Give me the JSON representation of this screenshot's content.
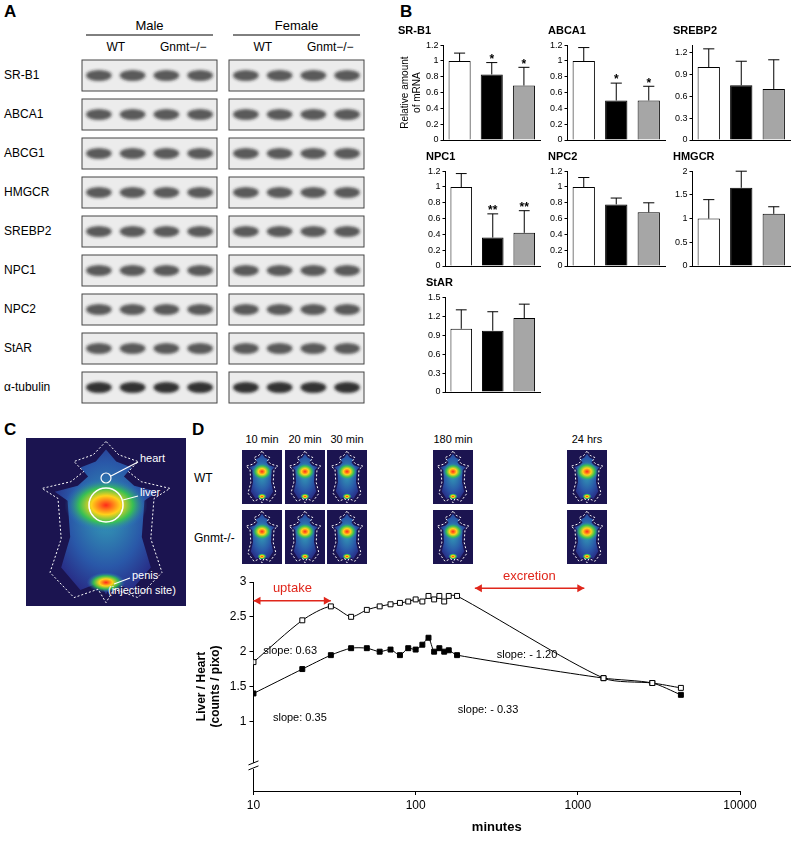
{
  "panel_labels": [
    "A",
    "B",
    "C",
    "D"
  ],
  "blots": {
    "groups": [
      {
        "label": "Male",
        "columns": [
          "WT",
          "Gnmt−/−"
        ]
      },
      {
        "label": "Female",
        "columns": [
          "WT",
          "Gnmt−/−"
        ]
      }
    ],
    "rows": [
      "SR-B1",
      "ABCA1",
      "ABCG1",
      "HMGCR",
      "SREBP2",
      "NPC1",
      "NPC2",
      "StAR",
      "α-tubulin"
    ]
  },
  "image_c": {
    "labels": [
      "heart",
      "liver",
      "penis",
      "(injection site)"
    ]
  },
  "image_d": {
    "times": [
      "10 min",
      "20 min",
      "30 min",
      "180 min",
      "24 hrs"
    ],
    "rows": [
      "WT",
      "Gnmt-/-"
    ]
  },
  "chart_data": [
    {
      "type": "bar",
      "title": "SR-B1",
      "y_label": [
        "Relative amount",
        "of mRNA"
      ],
      "categories": [
        null,
        null,
        null
      ],
      "values": [
        1,
        0.83,
        0.69
      ],
      "errors": [
        0.1,
        0.15,
        0.23
      ],
      "significance": [
        null,
        "*",
        "*"
      ],
      "colors": [
        "#ffffff",
        "#000000",
        "#a6a6a6"
      ],
      "ylim": [
        0,
        1.2
      ],
      "yticks": [
        0,
        0.2,
        0.4,
        0.6,
        0.8,
        1,
        1.2
      ],
      "grid": false,
      "tick_labels": "y"
    },
    {
      "type": "bar",
      "title": "ABCA1",
      "categories": [
        null,
        null,
        null
      ],
      "values": [
        1,
        0.5,
        0.5
      ],
      "errors": [
        0.17,
        0.22,
        0.18
      ],
      "significance": [
        null,
        "*",
        "*"
      ],
      "colors": [
        "#ffffff",
        "#000000",
        "#a6a6a6"
      ],
      "ylim": [
        0,
        1.2
      ],
      "yticks": [
        0,
        0.2,
        0.4,
        0.6,
        0.8,
        1,
        1.2
      ],
      "grid": false,
      "tick_labels": "y"
    },
    {
      "type": "bar",
      "title": "SREBP2",
      "categories": [
        null,
        null,
        null
      ],
      "values": [
        1,
        0.75,
        0.7
      ],
      "errors": [
        0.25,
        0.33,
        0.4
      ],
      "significance": [
        null,
        null,
        null
      ],
      "colors": [
        "#ffffff",
        "#000000",
        "#a6a6a6"
      ],
      "ylim": [
        0,
        1.3
      ],
      "yticks": [
        0,
        0.3,
        0.6,
        0.9,
        1.2
      ],
      "grid": false,
      "tick_labels": "y"
    },
    {
      "type": "bar",
      "title": "NPC1",
      "categories": [
        null,
        null,
        null
      ],
      "values": [
        1,
        0.36,
        0.42
      ],
      "errors": [
        0.17,
        0.3,
        0.28
      ],
      "significance": [
        null,
        "**",
        "**"
      ],
      "colors": [
        "#ffffff",
        "#000000",
        "#a6a6a6"
      ],
      "ylim": [
        0,
        1.2
      ],
      "yticks": [
        0,
        0.2,
        0.4,
        0.6,
        0.8,
        1,
        1.2
      ],
      "grid": false,
      "tick_labels": "y"
    },
    {
      "type": "bar",
      "title": "NPC2",
      "categories": [
        null,
        null,
        null
      ],
      "values": [
        1,
        0.78,
        0.68
      ],
      "errors": [
        0.12,
        0.08,
        0.12
      ],
      "significance": [
        null,
        null,
        null
      ],
      "colors": [
        "#ffffff",
        "#000000",
        "#a6a6a6"
      ],
      "ylim": [
        0,
        1.2
      ],
      "yticks": [
        0,
        0.2,
        0.4,
        0.6,
        0.8,
        1,
        1.2
      ],
      "grid": false,
      "tick_labels": "y"
    },
    {
      "type": "bar",
      "title": "HMGCR",
      "categories": [
        null,
        null,
        null
      ],
      "values": [
        1,
        1.65,
        1.1
      ],
      "errors": [
        0.4,
        0.35,
        0.15
      ],
      "significance": [
        null,
        null,
        null
      ],
      "colors": [
        "#ffffff",
        "#000000",
        "#a6a6a6"
      ],
      "ylim": [
        0,
        2
      ],
      "yticks": [
        0,
        0.5,
        1,
        1.5,
        2
      ],
      "grid": false,
      "tick_labels": "y"
    },
    {
      "type": "bar",
      "title": "StAR",
      "categories": [
        null,
        null,
        null
      ],
      "values": [
        1,
        0.97,
        1.17
      ],
      "errors": [
        0.3,
        0.3,
        0.22
      ],
      "significance": [
        null,
        null,
        null
      ],
      "colors": [
        "#ffffff",
        "#000000",
        "#a6a6a6"
      ],
      "ylim": [
        0,
        1.5
      ],
      "yticks": [
        0,
        0.3,
        0.6,
        0.9,
        1.2,
        1.5
      ],
      "grid": false,
      "tick_labels": "y"
    },
    {
      "type": "line",
      "x_label": "minutes",
      "y_label": [
        "Liver / Heart",
        "(counts / pixo)"
      ],
      "log": "x",
      "grid": false,
      "xlim": [
        10,
        10000
      ],
      "xticks": [
        10,
        100,
        1000,
        10000
      ],
      "ylim": [
        0,
        3
      ],
      "yticks": [
        1,
        1.5,
        2,
        2.5,
        3
      ],
      "x": [
        10,
        20,
        30,
        40,
        50,
        60,
        70,
        80,
        90,
        100,
        110,
        120,
        130,
        140,
        150,
        160,
        180,
        1440,
        2880,
        4320
      ],
      "series": [
        {
          "name": "WT",
          "color": "#000000",
          "marker": "square_open",
          "values": [
            1.85,
            2.45,
            2.65,
            2.5,
            2.6,
            2.65,
            2.68,
            2.7,
            2.72,
            2.75,
            2.72,
            2.8,
            2.75,
            2.8,
            2.72,
            2.8,
            2.8,
            1.62,
            1.55,
            1.48
          ]
        },
        {
          "name": "Gnmt-/-",
          "color": "#000000",
          "marker": "square",
          "values": [
            1.4,
            1.75,
            1.95,
            2.05,
            2.05,
            2.0,
            2.03,
            1.95,
            2.05,
            2.03,
            2.1,
            2.2,
            2.0,
            2.05,
            2.0,
            2.02,
            1.95,
            1.62,
            1.55,
            1.38
          ]
        }
      ],
      "annotations": [
        "uptake",
        "excretion",
        "slope: 0.63",
        "slope: 0.35",
        "slope: - 1.20",
        "slope: - 0.33"
      ]
    }
  ]
}
